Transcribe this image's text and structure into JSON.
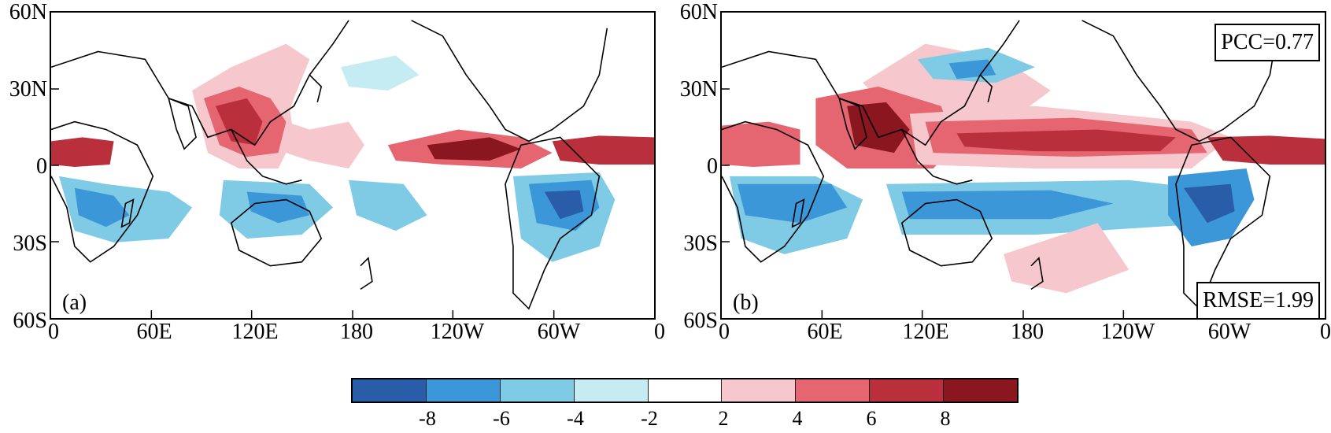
{
  "panels": [
    {
      "id": "a",
      "tag": "(a)"
    },
    {
      "id": "b",
      "tag": "(b)",
      "pcc": "PCC=0.77",
      "rmse": "RMSE=1.99"
    }
  ],
  "axes": {
    "lat_labels": [
      "60N",
      "30N",
      "0",
      "30S",
      "60S"
    ],
    "lon_labels": [
      "0",
      "60E",
      "120E",
      "180",
      "120W",
      "60W",
      "0"
    ]
  },
  "colorbar": {
    "tick_labels": [
      "-8",
      "-6",
      "-4",
      "-2",
      "2",
      "4",
      "6",
      "8"
    ],
    "colors": [
      "#2a5da8",
      "#3c97d9",
      "#7fcbe6",
      "#c5ecf2",
      "#ffffff",
      "#f6c7cc",
      "#e56670",
      "#b92f3c",
      "#8a1620"
    ]
  },
  "palette": {
    "neg_deep": "#2a5da8",
    "neg_mid": "#3c97d9",
    "neg_light": "#7fcbe6",
    "neg_pale": "#c5ecf2",
    "pos_pale": "#f6c7cc",
    "pos_mid": "#e56670",
    "pos_strong": "#b92f3c",
    "pos_deep": "#8a1620"
  }
}
